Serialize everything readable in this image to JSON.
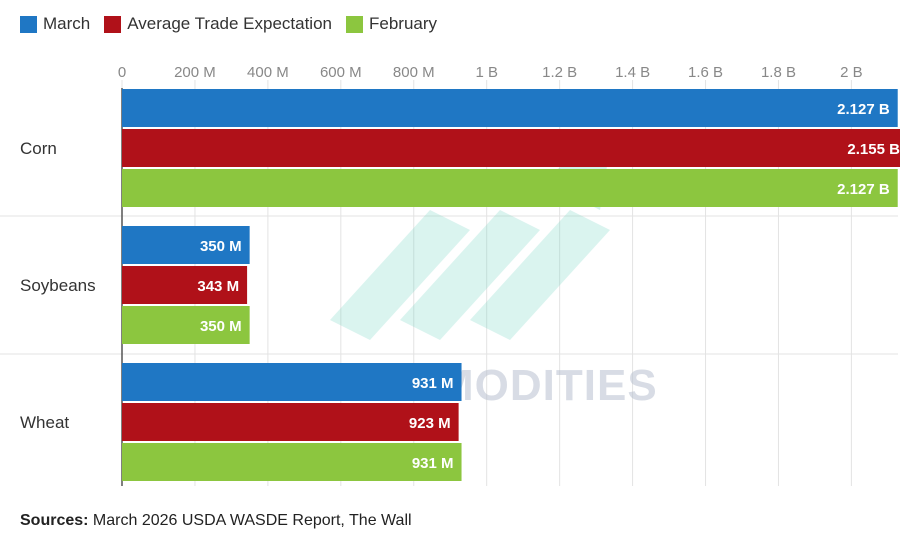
{
  "legend": {
    "march": {
      "label": "March",
      "color": "#1f77c4"
    },
    "expectation": {
      "label": "Average Trade Expectation",
      "color": "#b01119"
    },
    "february": {
      "label": "February",
      "color": "#8cc63f"
    }
  },
  "watermark": "VN COMMODITIES",
  "source": {
    "prefix": "Sources:",
    "text": "March 2026 USDA WASDE Report, The Wall"
  },
  "chart_data": {
    "type": "bar",
    "orientation": "horizontal",
    "title": "",
    "xlabel": "",
    "ylabel": "",
    "categories": [
      "Corn",
      "Soybeans",
      "Wheat"
    ],
    "xlim": [
      0,
      2.1
    ],
    "ticks": [
      0,
      0.2,
      0.4,
      0.6,
      0.8,
      1.0,
      1.2,
      1.4,
      1.6,
      1.8,
      2.0
    ],
    "tick_labels": [
      "0",
      "200 M",
      "400 M",
      "600 M",
      "800 M",
      "1 B",
      "1.2 B",
      "1.4 B",
      "1.6 B",
      "1.8 B",
      "2 B"
    ],
    "series": [
      {
        "name": "March",
        "color": "#1f77c4",
        "values": [
          2.127,
          0.35,
          0.931
        ],
        "labels": [
          "2.127 B",
          "350 M",
          "931 M"
        ]
      },
      {
        "name": "Average Trade Expectation",
        "color": "#b01119",
        "values": [
          2.155,
          0.343,
          0.923
        ],
        "labels": [
          "2.155 B",
          "343 M",
          "923 M"
        ]
      },
      {
        "name": "February",
        "color": "#8cc63f",
        "values": [
          2.127,
          0.35,
          0.931
        ],
        "labels": [
          "2.127 B",
          "350 M",
          "931 M"
        ]
      }
    ],
    "units": "billion bushels"
  }
}
